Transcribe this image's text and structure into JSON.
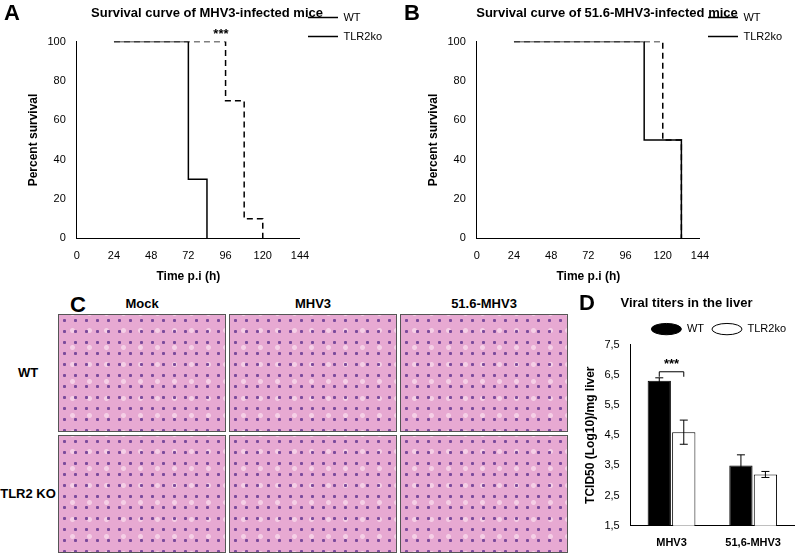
{
  "chart_data": [
    {
      "panel": "A",
      "type": "line",
      "title": "Survival curve of MHV3-infected mice",
      "x_label": "Time p.i (h)",
      "y_label": "Percent survival",
      "xlim": [
        0,
        144
      ],
      "xticks": [
        0,
        24,
        48,
        72,
        96,
        120,
        144
      ],
      "ylim": [
        0,
        100
      ],
      "yticks": [
        0,
        20,
        40,
        60,
        80,
        100
      ],
      "grid": false,
      "legend": "right",
      "series": [
        {
          "name": "WT",
          "color": "#000000",
          "line_style": "solid",
          "x": [
            24,
            72,
            84
          ],
          "values": [
            100,
            30,
            0
          ]
        },
        {
          "name": "TLR2ko",
          "color": "#000000",
          "line_style": "dashed",
          "x": [
            24,
            96,
            108,
            120
          ],
          "values": [
            100,
            70,
            10,
            0
          ]
        }
      ],
      "annotations": [
        {
          "text": "***",
          "x": 93,
          "y": 100
        }
      ]
    },
    {
      "panel": "B",
      "type": "line",
      "title": "Survival curve of 51.6-MHV3-infected mice",
      "x_label": "Time p.i (h)",
      "y_label": "Percent survival",
      "xlim": [
        0,
        144
      ],
      "xticks": [
        0,
        24,
        48,
        72,
        96,
        120,
        144
      ],
      "ylim": [
        0,
        100
      ],
      "yticks": [
        0,
        20,
        40,
        60,
        80,
        100
      ],
      "grid": false,
      "legend": "right",
      "series": [
        {
          "name": "WT",
          "color": "#000000",
          "line_style": "solid",
          "x": [
            24,
            108,
            132
          ],
          "values": [
            100,
            50,
            0
          ]
        },
        {
          "name": "TLR2ko",
          "color": "#000000",
          "line_style": "dashed",
          "x": [
            24,
            120,
            132
          ],
          "values": [
            100,
            50,
            0
          ]
        }
      ]
    },
    {
      "panel": "D",
      "type": "bar",
      "title": "Viral titers in the liver",
      "y_label": "TCID50 (Log10)/mg liver",
      "categories": [
        "MHV3",
        "51,6-MHV3"
      ],
      "ylim": [
        1.5,
        7.5
      ],
      "yticks": [
        {
          "value": 1.5,
          "label": "1,5"
        },
        {
          "value": 2.5,
          "label": "2,5"
        },
        {
          "value": 3.5,
          "label": "3,5"
        },
        {
          "value": 4.5,
          "label": "4,5"
        },
        {
          "value": 5.5,
          "label": "5,5"
        },
        {
          "value": 6.5,
          "label": "6,5"
        },
        {
          "value": 7.5,
          "label": "7,5"
        }
      ],
      "grid": false,
      "legend": "top",
      "series": [
        {
          "name": "WT",
          "color": "#000000",
          "values": [
            6.3,
            3.5
          ],
          "errors": [
            0.1,
            0.35
          ]
        },
        {
          "name": "TLR2ko",
          "color": "#ffffff",
          "values": [
            4.6,
            3.2
          ],
          "errors": [
            0.4,
            0.1
          ]
        }
      ],
      "annotations": [
        {
          "text": "***",
          "category": "MHV3",
          "y": 6.6
        }
      ]
    }
  ],
  "image_panel": {
    "panel": "C",
    "columns": [
      "Mock",
      "MHV3",
      "51.6-MHV3"
    ],
    "rows": [
      "WT",
      "TLR2 KO"
    ]
  }
}
